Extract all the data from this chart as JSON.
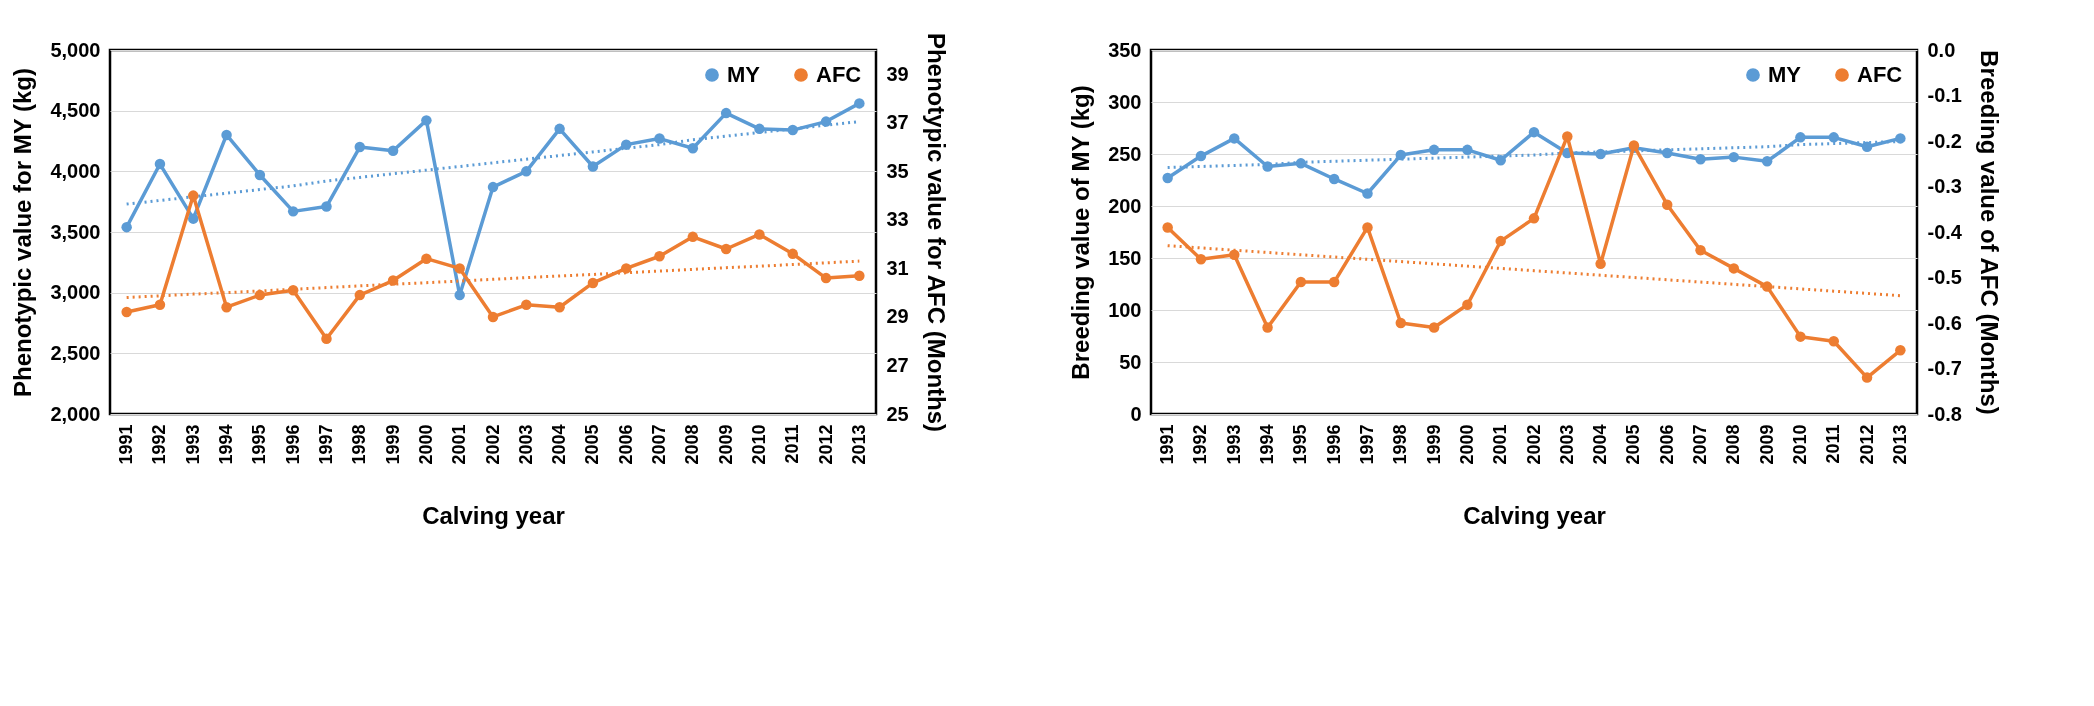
{
  "chart_data": [
    {
      "type": "line",
      "categories": [
        "1991",
        "1992",
        "1993",
        "1994",
        "1995",
        "1996",
        "1997",
        "1998",
        "1999",
        "2000",
        "2001",
        "2002",
        "2003",
        "2004",
        "2005",
        "2006",
        "2007",
        "2008",
        "2009",
        "2010",
        "2011",
        "2012",
        "2013"
      ],
      "xlabel": "Calving year",
      "ylabel": "Phenotypic value for MY (kg)",
      "y2label": "Phenotypic value for AFC (Months)",
      "ylim": [
        2000,
        5000
      ],
      "yticks": [
        {
          "value": 2000,
          "label": "2,000"
        },
        {
          "value": 2500,
          "label": "2,500"
        },
        {
          "value": 3000,
          "label": "3,000"
        },
        {
          "value": 3500,
          "label": "3,500"
        },
        {
          "value": 4000,
          "label": "4,000"
        },
        {
          "value": 4500,
          "label": "4,500"
        },
        {
          "value": 5000,
          "label": "5,000"
        }
      ],
      "y2lim": [
        25,
        40
      ],
      "y2ticks": [
        25,
        27,
        29,
        31,
        33,
        35,
        37,
        39
      ],
      "grid": "y",
      "legend": "top right",
      "marker": "circle",
      "line_style": "solid",
      "series": [
        {
          "name": "MY",
          "color": "#5b9bd5",
          "values": [
            3540,
            4060,
            3610,
            4300,
            3970,
            3670,
            3710,
            4200,
            4170,
            4420,
            2980,
            3870,
            4000,
            4350,
            4040,
            4220,
            4270,
            4190,
            4480,
            4350,
            4340,
            4410,
            4560
          ]
        },
        {
          "name": "AFC",
          "color": "#ed7d31",
          "axis": "y2",
          "values": [
            29.2,
            29.5,
            34.0,
            29.4,
            29.9,
            30.1,
            28.1,
            29.9,
            30.5,
            31.4,
            31.0,
            29.0,
            29.5,
            29.4,
            30.4,
            31.0,
            31.5,
            32.3,
            31.8,
            32.4,
            31.6,
            30.6,
            30.7
          ]
        },
        {
          "type": "line",
          "color": "#5b9bd5",
          "values": [
            3730,
            3760,
            3790,
            3820,
            3850,
            3880,
            3920,
            3950,
            3980,
            4010,
            4040,
            4070,
            4100,
            4130,
            4160,
            4190,
            4220,
            4260,
            4290,
            4320,
            4350,
            4380,
            4410
          ],
          "line_style": "dotted",
          "marker": "none"
        },
        {
          "type": "line",
          "color": "#ed7d31",
          "axis": "y2",
          "values": [
            29.8,
            29.87,
            29.94,
            30.0,
            30.07,
            30.14,
            30.21,
            30.28,
            30.35,
            30.41,
            30.48,
            30.55,
            30.62,
            30.69,
            30.75,
            30.82,
            30.89,
            30.96,
            31.03,
            31.09,
            31.16,
            31.23,
            31.3
          ],
          "line_style": "dotted",
          "marker": "none"
        }
      ]
    },
    {
      "type": "line",
      "categories": [
        "1991",
        "1992",
        "1993",
        "1994",
        "1995",
        "1996",
        "1997",
        "1998",
        "1999",
        "2000",
        "2001",
        "2002",
        "2003",
        "2004",
        "2005",
        "2006",
        "2007",
        "2008",
        "2009",
        "2010",
        "2011",
        "2012",
        "2013"
      ],
      "xlabel": "Calving year",
      "ylabel": "Breeding value of MY (kg)",
      "y2label": "Breeding value of AFC (Months)",
      "ylim": [
        0,
        350
      ],
      "yticks": [
        0,
        50,
        100,
        150,
        200,
        250,
        300,
        350
      ],
      "y2lim": [
        -0.8,
        0.0
      ],
      "y2ticks": [
        {
          "value": -0.8,
          "label": "-0.8"
        },
        {
          "value": -0.7,
          "label": "-0.7"
        },
        {
          "value": -0.6,
          "label": "-0.6"
        },
        {
          "value": -0.5,
          "label": "-0.5"
        },
        {
          "value": -0.4,
          "label": "-0.4"
        },
        {
          "value": -0.3,
          "label": "-0.3"
        },
        {
          "value": -0.2,
          "label": "-0.2"
        },
        {
          "value": -0.1,
          "label": "-0.1"
        },
        {
          "value": 0.0,
          "label": "0.0"
        }
      ],
      "grid": "y",
      "legend": "top right",
      "marker": "circle",
      "line_style": "solid",
      "series": [
        {
          "name": "MY",
          "color": "#5b9bd5",
          "values": [
            227,
            248,
            265,
            238,
            241,
            226,
            212,
            249,
            254,
            254,
            244,
            271,
            251,
            250,
            256,
            251,
            245,
            247,
            243,
            266,
            266,
            257,
            265
          ]
        },
        {
          "name": "AFC",
          "color": "#ed7d31",
          "axis": "y2",
          "values": [
            -0.39,
            -0.46,
            -0.45,
            -0.61,
            -0.51,
            -0.51,
            -0.39,
            -0.6,
            -0.61,
            -0.56,
            -0.42,
            -0.37,
            -0.19,
            -0.47,
            -0.21,
            -0.34,
            -0.44,
            -0.48,
            -0.52,
            -0.63,
            -0.64,
            -0.72,
            -0.66
          ]
        },
        {
          "type": "line",
          "color": "#5b9bd5",
          "values": [
            237,
            238,
            239,
            240,
            242,
            243,
            244,
            245,
            246,
            247,
            248,
            249,
            251,
            252,
            253,
            254,
            255,
            256,
            257,
            259,
            260,
            261,
            262
          ],
          "line_style": "dotted",
          "marker": "none"
        },
        {
          "type": "line",
          "color": "#ed7d31",
          "axis": "y2",
          "values": [
            -0.43,
            -0.435,
            -0.44,
            -0.445,
            -0.45,
            -0.455,
            -0.46,
            -0.465,
            -0.47,
            -0.475,
            -0.48,
            -0.485,
            -0.49,
            -0.495,
            -0.5,
            -0.505,
            -0.51,
            -0.515,
            -0.52,
            -0.525,
            -0.53,
            -0.535,
            -0.54
          ],
          "line_style": "dotted",
          "marker": "none"
        }
      ]
    }
  ]
}
